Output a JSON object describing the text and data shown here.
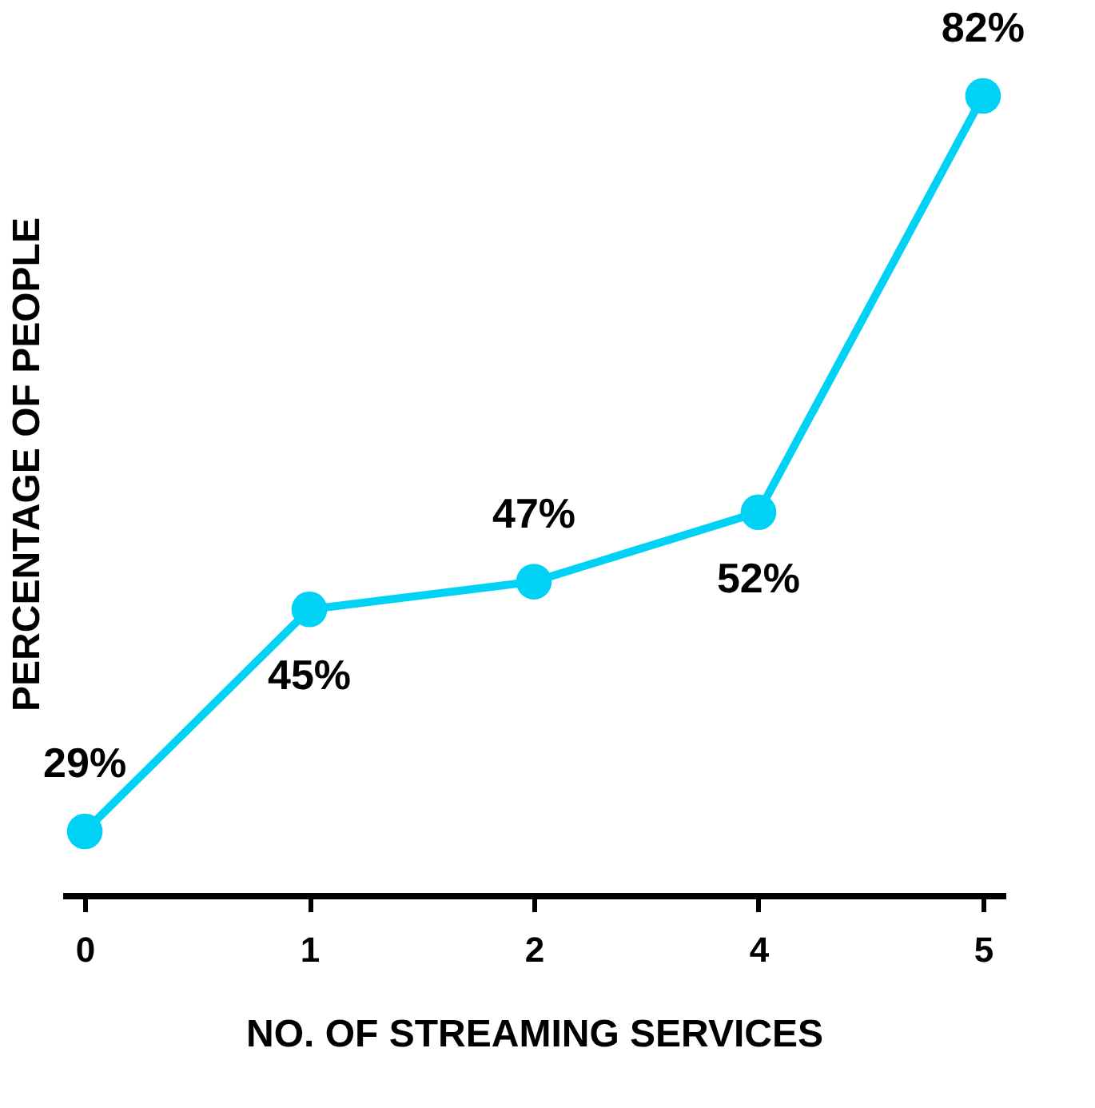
{
  "chart_data": {
    "type": "line",
    "xlabel": "NO. OF STREAMING SERVICES",
    "ylabel": "PERCENTAGE OF PEOPLE",
    "categories": [
      "0",
      "1",
      "2",
      "4",
      "5"
    ],
    "series": [
      {
        "color": "#00d2f5",
        "values": [
          29,
          45,
          47,
          52,
          82
        ],
        "value_labels": [
          "29%",
          "45%",
          "47%",
          "52%",
          "82%"
        ]
      }
    ],
    "marker": "circle",
    "line_style": "solid",
    "grid": false
  }
}
